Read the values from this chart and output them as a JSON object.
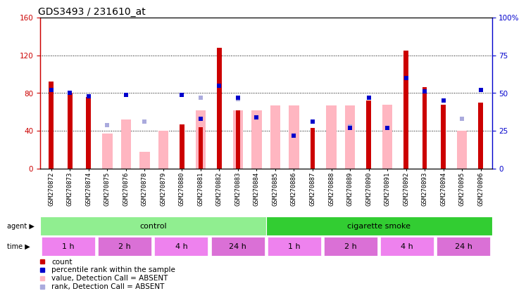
{
  "title": "GDS3493 / 231610_at",
  "samples": [
    "GSM270872",
    "GSM270873",
    "GSM270874",
    "GSM270875",
    "GSM270876",
    "GSM270878",
    "GSM270879",
    "GSM270880",
    "GSM270881",
    "GSM270882",
    "GSM270883",
    "GSM270884",
    "GSM270885",
    "GSM270886",
    "GSM270887",
    "GSM270888",
    "GSM270889",
    "GSM270890",
    "GSM270891",
    "GSM270892",
    "GSM270893",
    "GSM270894",
    "GSM270895",
    "GSM270896"
  ],
  "count_values": [
    92,
    80,
    76,
    null,
    null,
    null,
    null,
    47,
    44,
    128,
    62,
    null,
    null,
    null,
    43,
    null,
    null,
    72,
    null,
    125,
    86,
    68,
    null,
    70
  ],
  "absent_value_values": [
    null,
    null,
    null,
    37,
    52,
    18,
    40,
    null,
    62,
    null,
    62,
    62,
    67,
    67,
    null,
    67,
    67,
    null,
    68,
    null,
    null,
    null,
    40,
    null
  ],
  "absent_rank_values": [
    null,
    null,
    null,
    29,
    49,
    31,
    null,
    null,
    47,
    null,
    46,
    34,
    null,
    null,
    31,
    null,
    28,
    null,
    27,
    null,
    null,
    null,
    33,
    null
  ],
  "percentile_rank_values": [
    52,
    50,
    48,
    null,
    49,
    null,
    null,
    49,
    33,
    55,
    47,
    34,
    null,
    22,
    31,
    null,
    27,
    47,
    27,
    60,
    51,
    45,
    null,
    52
  ],
  "agent_groups": [
    {
      "label": "control",
      "start": 0,
      "end": 12,
      "color": "#90EE90"
    },
    {
      "label": "cigarette smoke",
      "start": 12,
      "end": 24,
      "color": "#32CD32"
    }
  ],
  "time_groups": [
    {
      "label": "1 h",
      "start": 0,
      "end": 3,
      "color": "#EE82EE"
    },
    {
      "label": "2 h",
      "start": 3,
      "end": 6,
      "color": "#DA70D6"
    },
    {
      "label": "4 h",
      "start": 6,
      "end": 9,
      "color": "#EE82EE"
    },
    {
      "label": "24 h",
      "start": 9,
      "end": 12,
      "color": "#DA70D6"
    },
    {
      "label": "1 h",
      "start": 12,
      "end": 15,
      "color": "#EE82EE"
    },
    {
      "label": "2 h",
      "start": 15,
      "end": 18,
      "color": "#DA70D6"
    },
    {
      "label": "4 h",
      "start": 18,
      "end": 21,
      "color": "#EE82EE"
    },
    {
      "label": "24 h",
      "start": 21,
      "end": 24,
      "color": "#DA70D6"
    }
  ],
  "left_ylim": [
    0,
    160
  ],
  "right_ylim": [
    0,
    100
  ],
  "left_yticks": [
    0,
    40,
    80,
    120,
    160
  ],
  "right_yticks": [
    0,
    25,
    50,
    75,
    100
  ],
  "bar_color": "#CC0000",
  "absent_bar_color": "#FFB6C1",
  "rank_dot_color": "#0000CC",
  "absent_rank_dot_color": "#AAAADD",
  "bg_color": "#FFFFFF",
  "title_fontsize": 10,
  "axis_fontsize": 7.5,
  "tick_fontsize": 6.5
}
